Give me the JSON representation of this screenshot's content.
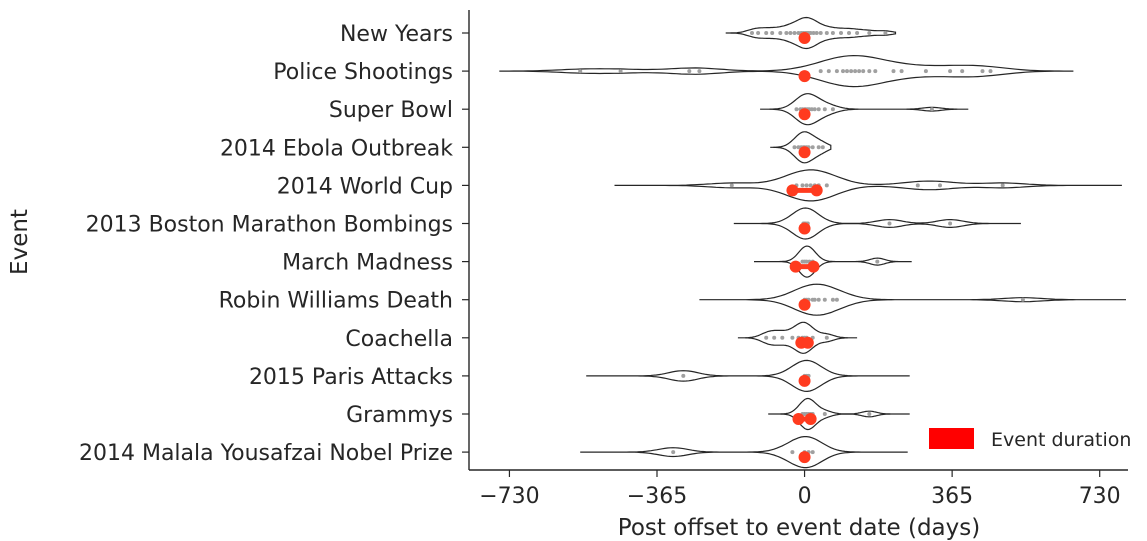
{
  "chart_data": {
    "type": "violin",
    "xlabel": "Post offset to event date (days)",
    "ylabel": "Event",
    "xlim": [
      -830,
      800
    ],
    "xticks": [
      -730,
      -365,
      0,
      365,
      730
    ],
    "xtick_labels": [
      "−730",
      "−365",
      "0",
      "365",
      "730"
    ],
    "grid": false,
    "legend": {
      "placement": "lower-right",
      "entries": [
        {
          "label": "Event duration",
          "color": "#ff0000"
        }
      ]
    },
    "colors": {
      "violin_outline": "#262626",
      "posts": "#a0a0a0",
      "event": "#ff3b1f"
    },
    "events": [
      {
        "name": "New Years",
        "range": [
          -195,
          225
        ],
        "event_days": [
          0,
          0
        ],
        "posts": [
          -130,
          -115,
          -95,
          -80,
          -60,
          -45,
          -35,
          -25,
          -15,
          -8,
          -3,
          2,
          6,
          10,
          15,
          22,
          30,
          40,
          55,
          70,
          90,
          110,
          130,
          160,
          200
        ]
      },
      {
        "name": "Police Shootings",
        "range": [
          -755,
          665
        ],
        "event_days": [
          0,
          0
        ],
        "posts": [
          -555,
          -455,
          -285,
          -260,
          40,
          60,
          80,
          95,
          105,
          115,
          125,
          135,
          145,
          160,
          175,
          220,
          240,
          300,
          360,
          390,
          440,
          460
        ]
      },
      {
        "name": "Super Bowl",
        "range": [
          -110,
          405
        ],
        "event_days": [
          0,
          0
        ],
        "posts": [
          -20,
          -10,
          -5,
          0,
          3,
          8,
          12,
          18,
          25,
          35,
          50,
          70,
          315
        ]
      },
      {
        "name": "2014 Ebola Outbreak",
        "range": [
          -85,
          65
        ],
        "event_days": [
          0,
          0
        ],
        "posts": [
          -25,
          -15,
          -8,
          -3,
          0,
          5,
          10,
          20,
          35,
          45
        ]
      },
      {
        "name": "2014 World Cup",
        "range": [
          -470,
          785
        ],
        "event_days": [
          -30,
          30
        ],
        "posts": [
          -180,
          -20,
          -5,
          5,
          15,
          25,
          35,
          55,
          280,
          335,
          490
        ]
      },
      {
        "name": "2013 Boston Marathon Bombings",
        "range": [
          -175,
          535
        ],
        "event_days": [
          0,
          0
        ],
        "posts": [
          -3,
          0,
          3,
          8,
          210,
          360
        ]
      },
      {
        "name": "March Madness",
        "range": [
          -125,
          265
        ],
        "event_days": [
          -22,
          22
        ],
        "posts": [
          -5,
          0,
          5,
          12,
          20,
          180
        ]
      },
      {
        "name": "Robin Williams Death",
        "range": [
          -260,
          795
        ],
        "event_days": [
          0,
          0
        ],
        "posts": [
          0,
          5,
          10,
          20,
          25,
          35,
          50,
          70,
          80,
          540
        ]
      },
      {
        "name": "Coachella",
        "range": [
          -165,
          130
        ],
        "event_days": [
          -8,
          8
        ],
        "posts": [
          -95,
          -75,
          -55,
          -30,
          -15,
          -5,
          0,
          5,
          20,
          55
        ]
      },
      {
        "name": "2015 Paris Attacks",
        "range": [
          -540,
          260
        ],
        "event_days": [
          0,
          0
        ],
        "posts": [
          -300,
          0,
          5,
          10
        ]
      },
      {
        "name": "Grammys",
        "range": [
          -90,
          260
        ],
        "event_days": [
          -15,
          15
        ],
        "posts": [
          -5,
          0,
          5,
          10,
          15,
          20,
          50,
          160
        ]
      },
      {
        "name": "2014 Malala Yousafzai Nobel Prize",
        "range": [
          -555,
          255
        ],
        "event_days": [
          0,
          0
        ],
        "posts": [
          -325,
          -30,
          0,
          10,
          20
        ]
      }
    ]
  }
}
